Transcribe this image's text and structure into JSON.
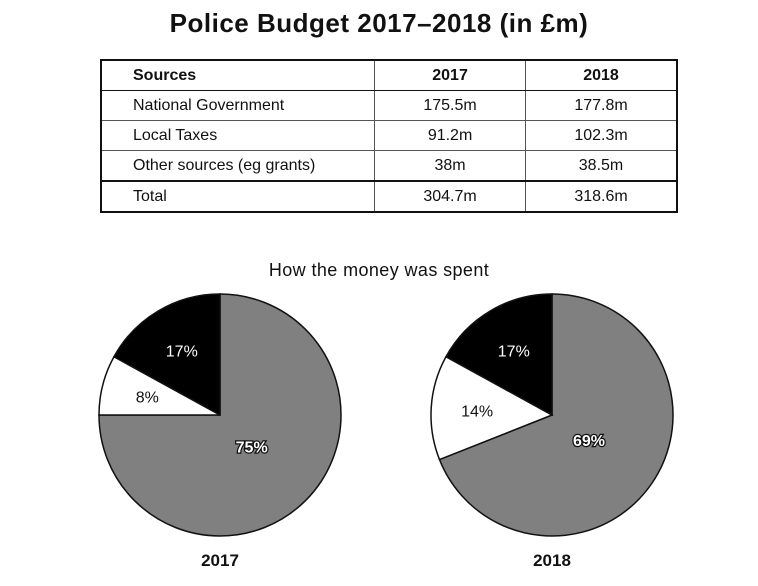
{
  "title": "Police Budget 2017–2018 (in £m)",
  "table": {
    "headers": [
      "Sources",
      "2017",
      "2018"
    ],
    "rows": [
      {
        "source": "National Government",
        "y2017": "175.5m",
        "y2018": "177.8m"
      },
      {
        "source": "Local Taxes",
        "y2017": "91.2m",
        "y2018": "102.3m"
      },
      {
        "source": "Other sources (eg grants)",
        "y2017": "38m",
        "y2018": "38.5m"
      },
      {
        "source": "Total",
        "y2017": "304.7m",
        "y2018": "318.6m"
      }
    ]
  },
  "pie_section_title": "How the money was spent",
  "chart_data": [
    {
      "type": "table",
      "title": "Police Budget 2017–2018 (in £m)",
      "columns": [
        "Sources",
        "2017",
        "2018"
      ],
      "rows": [
        [
          "National Government",
          "175.5m",
          "177.8m"
        ],
        [
          "Local Taxes",
          "91.2m",
          "102.3m"
        ],
        [
          "Other sources (eg grants)",
          "38m",
          "38.5m"
        ],
        [
          "Total",
          "304.7m",
          "318.6m"
        ]
      ]
    },
    {
      "type": "pie",
      "title": "How the money was spent",
      "label": "2017",
      "slices": [
        {
          "value": 75,
          "label": "75%",
          "color": "#808080"
        },
        {
          "value": 8,
          "label": "8%",
          "color": "#ffffff"
        },
        {
          "value": 17,
          "label": "17%",
          "color": "#000000"
        }
      ]
    },
    {
      "type": "pie",
      "title": "How the money was spent",
      "label": "2018",
      "slices": [
        {
          "value": 69,
          "label": "69%",
          "color": "#808080"
        },
        {
          "value": 14,
          "label": "14%",
          "color": "#ffffff"
        },
        {
          "value": 17,
          "label": "17%",
          "color": "#000000"
        }
      ]
    }
  ]
}
